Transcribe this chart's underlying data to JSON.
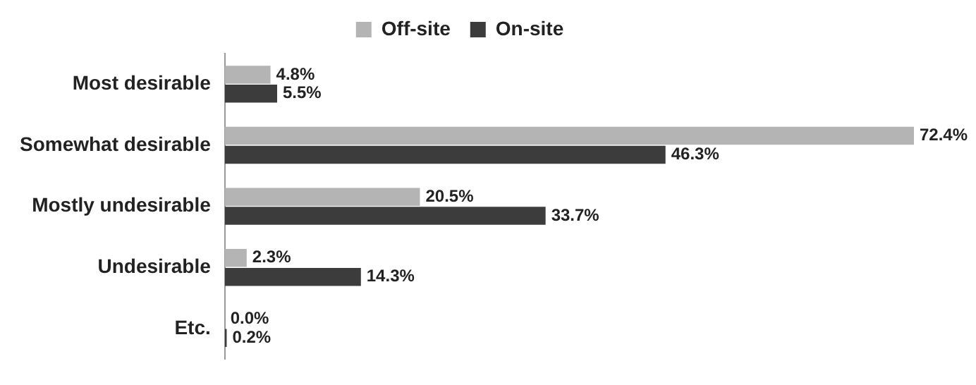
{
  "chart_data": {
    "type": "bar",
    "orientation": "horizontal",
    "categories": [
      "Most desirable",
      "Somewhat desirable",
      "Mostly undesirable",
      "Undesirable",
      "Etc."
    ],
    "series": [
      {
        "name": "Off-site",
        "color": "#b4b4b4",
        "values": [
          4.8,
          72.4,
          20.5,
          2.3,
          0.0
        ],
        "value_labels": [
          "4.8%",
          "72.4%",
          "20.5%",
          "2.3%",
          "0.0%"
        ]
      },
      {
        "name": "On-site",
        "color": "#3c3c3c",
        "values": [
          5.5,
          46.3,
          33.7,
          14.3,
          0.2
        ],
        "value_labels": [
          "5.5%",
          "46.3%",
          "33.7%",
          "14.3%",
          "0.2%"
        ]
      }
    ],
    "legend": "top",
    "grid": false
  }
}
